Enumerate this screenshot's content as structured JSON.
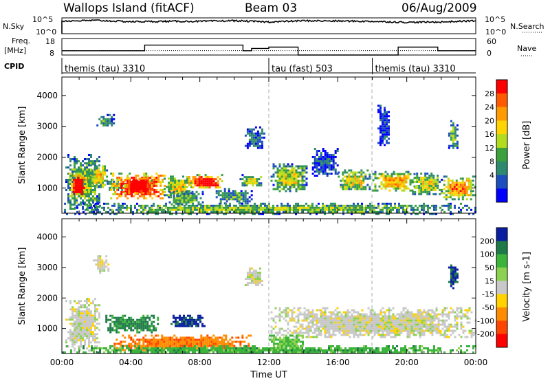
{
  "header": {
    "station": "Wallops Island (fitACF)",
    "beam": "Beam 03",
    "date": "06/Aug/2009"
  },
  "left_labels": {
    "nsky": "N.Sky",
    "freq": "Freq.",
    "freq_unit": "[MHz]",
    "cpid": "CPID"
  },
  "right_labels": {
    "nsearch": "N.Search",
    "nave": "Nave"
  },
  "nsky_ticks": {
    "top": "10^5",
    "bottom": "10^0"
  },
  "nsearch_ticks": {
    "top": "10^5",
    "bottom": "10^0"
  },
  "freq_ticks": {
    "top": "18",
    "bottom": "8"
  },
  "nave_ticks": {
    "top": "60",
    "bottom": "0"
  },
  "cpid_segments": [
    {
      "label": "themis (tau) 3310",
      "start_hour": 0
    },
    {
      "label": "tau (fast) 503",
      "start_hour": 12
    },
    {
      "label": "themis (tau) 3310",
      "start_hour": 18
    }
  ],
  "chart_data": [
    {
      "type": "heatmap",
      "panel": "power",
      "x_range_hours": [
        0,
        24
      ],
      "ylim": [
        180,
        4600
      ],
      "ylabel": "Slant Range [km]",
      "y_ticks": [
        1000,
        2000,
        3000,
        4000
      ],
      "colorbar": {
        "label": "Power [dB]",
        "ticks": [
          "28",
          "24",
          "20",
          "16",
          "12",
          "8",
          "4"
        ],
        "colors": [
          "#ff0000",
          "#ff5a00",
          "#ff9a00",
          "#ffd400",
          "#b4dc1e",
          "#3ca03c",
          "#2d8a6e",
          "#1e4ebe",
          "#0000ff"
        ]
      },
      "regions": [
        {
          "x": [
            0.2,
            2.2
          ],
          "y": [
            300,
            2100
          ],
          "level": 0.35
        },
        {
          "x": [
            0.4,
            1.4
          ],
          "y": [
            700,
            1500
          ],
          "level": 0.9
        },
        {
          "x": [
            1.6,
            2.6
          ],
          "y": [
            1000,
            1800
          ],
          "level": 0.5
        },
        {
          "x": [
            2.6,
            3.5
          ],
          "y": [
            900,
            1300
          ],
          "level": 0.3
        },
        {
          "x": [
            2.8,
            6.0
          ],
          "y": [
            650,
            1500
          ],
          "level": 0.88
        },
        {
          "x": [
            3.6,
            5.2
          ],
          "y": [
            800,
            1400
          ],
          "level": 0.95
        },
        {
          "x": [
            5.9,
            7.5
          ],
          "y": [
            700,
            1400
          ],
          "level": 0.45
        },
        {
          "x": [
            7.2,
            9.3
          ],
          "y": [
            1000,
            1450
          ],
          "level": 0.82
        },
        {
          "x": [
            6.2,
            8.2
          ],
          "y": [
            450,
            900
          ],
          "level": 0.3
        },
        {
          "x": [
            8.8,
            11.0
          ],
          "y": [
            500,
            1000
          ],
          "level": 0.25
        },
        {
          "x": [
            10.3,
            11.6
          ],
          "y": [
            1050,
            1450
          ],
          "level": 0.4
        },
        {
          "x": [
            0.0,
            24.0
          ],
          "y": [
            180,
            520
          ],
          "level": 0.35
        },
        {
          "x": [
            2.0,
            3.0
          ],
          "y": [
            3000,
            3400
          ],
          "level": 0.25
        },
        {
          "x": [
            10.6,
            11.7
          ],
          "y": [
            2300,
            3000
          ],
          "level": 0.2
        },
        {
          "x": [
            12.1,
            14.2
          ],
          "y": [
            900,
            1800
          ],
          "level": 0.4
        },
        {
          "x": [
            14.5,
            16.0
          ],
          "y": [
            1400,
            2300
          ],
          "level": 0.15
        },
        {
          "x": [
            16.0,
            17.8
          ],
          "y": [
            950,
            1600
          ],
          "level": 0.45
        },
        {
          "x": [
            18.0,
            20.4
          ],
          "y": [
            900,
            1550
          ],
          "level": 0.55
        },
        {
          "x": [
            20.3,
            22.0
          ],
          "y": [
            800,
            1500
          ],
          "level": 0.45
        },
        {
          "x": [
            22.0,
            24.0
          ],
          "y": [
            650,
            1400
          ],
          "level": 0.6
        },
        {
          "x": [
            22.4,
            22.9
          ],
          "y": [
            2300,
            3200
          ],
          "level": 0.3
        },
        {
          "x": [
            18.3,
            19.0
          ],
          "y": [
            2400,
            3700
          ],
          "level": 0.12
        }
      ]
    },
    {
      "type": "heatmap",
      "panel": "velocity",
      "x_range_hours": [
        0,
        24
      ],
      "ylim": [
        180,
        4600
      ],
      "ylabel": "Slant Range [km]",
      "xlabel": "Time UT",
      "x_ticks": [
        "00:00",
        "04:00",
        "08:00",
        "12:00",
        "16:00",
        "20:00",
        "00:00"
      ],
      "y_ticks": [
        1000,
        2000,
        3000,
        4000
      ],
      "colorbar": {
        "label": "Velocity [m s-1]",
        "ticks": [
          "200",
          "100",
          "50",
          "15",
          "-15",
          "-50",
          "-100",
          "-200"
        ],
        "colors": [
          "#0a1ea0",
          "#1e7a46",
          "#3cb43c",
          "#8cd250",
          "#c8c8c8",
          "#ffd200",
          "#ff8c00",
          "#ff4600",
          "#ff0000"
        ]
      },
      "regions": [
        {
          "x": [
            0.2,
            2.2
          ],
          "y": [
            300,
            2000
          ],
          "level": 0.0
        },
        {
          "x": [
            2.4,
            5.6
          ],
          "y": [
            900,
            1450
          ],
          "level": 0.7
        },
        {
          "x": [
            6.3,
            8.3
          ],
          "y": [
            1050,
            1450
          ],
          "level": 0.95
        },
        {
          "x": [
            3.0,
            11.0
          ],
          "y": [
            300,
            800
          ],
          "level": -0.55
        },
        {
          "x": [
            0.0,
            24.0
          ],
          "y": [
            180,
            450
          ],
          "level": 0.5
        },
        {
          "x": [
            12.1,
            24.0
          ],
          "y": [
            700,
            1700
          ],
          "level": 0.0
        },
        {
          "x": [
            22.4,
            22.9
          ],
          "y": [
            2300,
            3100
          ],
          "level": 0.9
        },
        {
          "x": [
            1.8,
            2.7
          ],
          "y": [
            2800,
            3400
          ],
          "level": 0.0
        },
        {
          "x": [
            10.6,
            11.6
          ],
          "y": [
            2400,
            3000
          ],
          "level": 0.0
        },
        {
          "x": [
            12.0,
            14.0
          ],
          "y": [
            300,
            800
          ],
          "level": 0.4
        }
      ]
    },
    {
      "type": "line",
      "panel": "n-sky",
      "x_range_hours": [
        0,
        24
      ],
      "series": [
        {
          "x": [
            0,
            2,
            4,
            6,
            8,
            10,
            12,
            14,
            16,
            18,
            20,
            22,
            24
          ],
          "values": [
            4,
            4.2,
            3.8,
            3.9,
            3.9,
            4.1,
            3.7,
            4.1,
            4.0,
            3.9,
            3.6,
            3.7,
            4.1
          ]
        }
      ]
    },
    {
      "type": "line",
      "panel": "frequency",
      "x_range_hours": [
        0,
        24
      ],
      "series": [
        {
          "x": [
            0,
            4.6,
            4.8,
            10.5,
            11.0,
            12.0,
            13.6,
            13.7,
            19.5,
            21.8,
            24
          ],
          "values": [
            10.6,
            10.6,
            14,
            10.6,
            12.0,
            12.8,
            12.8,
            8,
            12.8,
            10.6,
            10.6
          ]
        }
      ]
    },
    {
      "type": "line",
      "panel": "nave",
      "x_range_hours": [
        0,
        24
      ],
      "series": [
        {
          "x": [
            0,
            12,
            24
          ],
          "values": [
            16,
            16,
            16
          ]
        }
      ]
    }
  ]
}
